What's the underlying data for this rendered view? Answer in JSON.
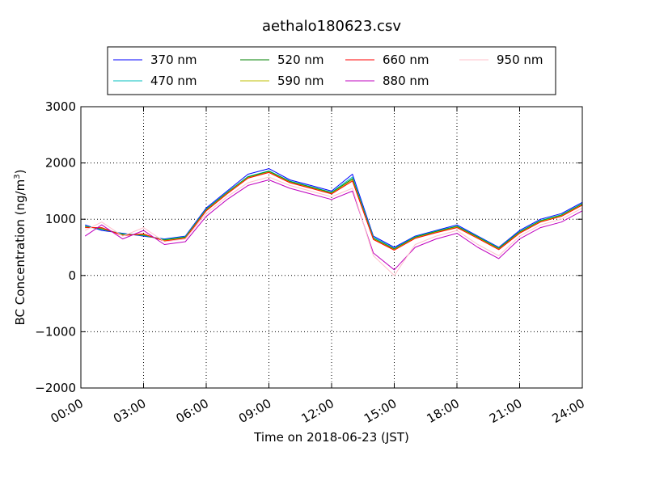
{
  "chart_data": {
    "type": "line",
    "title": "aethalo180623.csv",
    "xlabel": "Time on 2018-06-23 (JST)",
    "ylabel": "BC Concentration (ng/m",
    "ylabel_sup": "3",
    "ylabel_end": ")",
    "xlim": [
      "00:00",
      "24:00"
    ],
    "ylim": [
      -2000,
      3000
    ],
    "x_ticks": [
      "00:00",
      "03:00",
      "06:00",
      "09:00",
      "12:00",
      "15:00",
      "18:00",
      "21:00",
      "24:00"
    ],
    "y_ticks": [
      "−2000",
      "−1000",
      "0",
      "1000",
      "2000",
      "3000"
    ],
    "grid": true,
    "legend_position": "top",
    "x_hours": [
      0.2,
      1,
      2,
      3,
      4,
      5,
      6,
      7,
      8,
      9,
      10,
      11,
      12,
      13,
      14,
      15,
      16,
      17,
      18,
      19,
      20,
      21,
      22,
      23,
      24
    ],
    "series": [
      {
        "name": "370 nm",
        "color": "#0000ff",
        "values": [
          900,
          800,
          750,
          700,
          650,
          700,
          1200,
          1500,
          1800,
          1900,
          1700,
          1600,
          1500,
          1800,
          700,
          500,
          700,
          800,
          900,
          700,
          500,
          800,
          1000,
          1100,
          1300
        ]
      },
      {
        "name": "470 nm",
        "color": "#00bfbf",
        "values": [
          880,
          820,
          740,
          710,
          640,
          690,
          1180,
          1480,
          1760,
          1860,
          1680,
          1580,
          1480,
          1750,
          680,
          480,
          690,
          790,
          880,
          690,
          490,
          780,
          980,
          1080,
          1280
        ]
      },
      {
        "name": "520 nm",
        "color": "#008000",
        "values": [
          870,
          830,
          730,
          720,
          630,
          680,
          1170,
          1470,
          1750,
          1850,
          1670,
          1570,
          1470,
          1720,
          660,
          470,
          680,
          780,
          870,
          680,
          480,
          770,
          970,
          1070,
          1270
        ]
      },
      {
        "name": "590 nm",
        "color": "#bfbf00",
        "values": [
          860,
          840,
          720,
          730,
          620,
          670,
          1160,
          1460,
          1740,
          1840,
          1660,
          1560,
          1460,
          1700,
          650,
          460,
          670,
          770,
          860,
          670,
          470,
          760,
          960,
          1060,
          1260
        ]
      },
      {
        "name": "660 nm",
        "color": "#ff0000",
        "values": [
          850,
          850,
          710,
          740,
          610,
          660,
          1150,
          1450,
          1730,
          1830,
          1650,
          1550,
          1450,
          1680,
          640,
          450,
          660,
          760,
          850,
          660,
          460,
          750,
          950,
          1050,
          1250
        ]
      },
      {
        "name": "880 nm",
        "color": "#bf00bf",
        "values": [
          700,
          900,
          650,
          800,
          550,
          600,
          1050,
          1350,
          1600,
          1700,
          1550,
          1450,
          1350,
          1500,
          400,
          100,
          500,
          650,
          750,
          500,
          300,
          650,
          850,
          950,
          1150
        ]
      },
      {
        "name": "950 nm",
        "color": "#ffc0cb",
        "values": [
          800,
          950,
          700,
          850,
          600,
          650,
          1100,
          1400,
          1650,
          1750,
          1600,
          1500,
          1400,
          1550,
          350,
          0,
          550,
          700,
          800,
          550,
          350,
          700,
          900,
          1000,
          1200
        ]
      }
    ]
  }
}
